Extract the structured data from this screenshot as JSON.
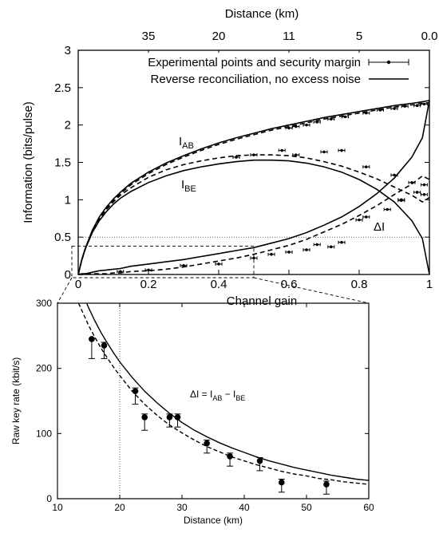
{
  "chart_data": [
    {
      "type": "line",
      "x_axis": {
        "label": "Channel gain",
        "range": [
          0,
          1
        ],
        "ticks": [
          0,
          0.2,
          0.4,
          0.6,
          0.8,
          1
        ],
        "tick_labels": [
          "0",
          "0.2",
          "0.4",
          "0.6",
          "0.8",
          "1"
        ]
      },
      "x2_axis": {
        "label": "Distance (km)",
        "ticks_at_gain": [
          0.2,
          0.4,
          0.6,
          0.8,
          1.0
        ],
        "tick_labels": [
          "35",
          "20",
          "11",
          "5",
          "0.0"
        ]
      },
      "y_axis": {
        "label": "Information (bits/pulse)",
        "range": [
          0,
          3
        ],
        "ticks": [
          0,
          0.5,
          1,
          1.5,
          2,
          2.5,
          3
        ],
        "tick_labels": [
          "0",
          "0.5",
          "1",
          "1.5",
          "2",
          "2.5",
          "3"
        ]
      },
      "legend": {
        "position": "top",
        "entries": [
          {
            "label": "Experimental points and security margin",
            "style": "errorbar-points"
          },
          {
            "label": "Reverse reconciliation, no excess noise",
            "style": "solid-line"
          }
        ]
      },
      "annotations": [
        {
          "text": "I",
          "sub": "AB",
          "near": "I_AB curve"
        },
        {
          "text": "I",
          "sub": "BE",
          "near": "I_BE curve"
        },
        {
          "text": "ΔI",
          "near": "ΔI curve"
        }
      ],
      "theory_VA": 40,
      "series": [
        {
          "name": "I_AB theory",
          "style": "solid",
          "x": [
            0.0,
            0.01,
            0.02,
            0.04,
            0.06,
            0.08,
            0.1,
            0.12,
            0.15,
            0.2,
            0.25,
            0.3,
            0.35,
            0.4,
            0.45,
            0.5,
            0.55,
            0.6,
            0.65,
            0.7,
            0.75,
            0.8,
            0.85,
            0.9,
            0.95,
            0.98,
            1.0
          ],
          "y": [
            0.0,
            0.2,
            0.35,
            0.59,
            0.77,
            0.9,
            1.01,
            1.1,
            1.22,
            1.37,
            1.49,
            1.59,
            1.68,
            1.76,
            1.83,
            1.89,
            1.95,
            2.0,
            2.05,
            2.1,
            2.14,
            2.18,
            2.22,
            2.26,
            2.29,
            2.31,
            2.33
          ]
        },
        {
          "name": "I_BE theory",
          "style": "solid",
          "x": [
            0.0,
            0.01,
            0.02,
            0.04,
            0.06,
            0.08,
            0.1,
            0.12,
            0.15,
            0.2,
            0.25,
            0.3,
            0.35,
            0.4,
            0.45,
            0.5,
            0.55,
            0.6,
            0.65,
            0.7,
            0.75,
            0.8,
            0.85,
            0.9,
            0.95,
            0.98,
            1.0
          ],
          "y": [
            0.0,
            0.19,
            0.34,
            0.56,
            0.72,
            0.84,
            0.94,
            1.02,
            1.11,
            1.23,
            1.32,
            1.39,
            1.44,
            1.48,
            1.51,
            1.53,
            1.53,
            1.52,
            1.49,
            1.44,
            1.37,
            1.27,
            1.14,
            0.97,
            0.72,
            0.48,
            0.0
          ]
        },
        {
          "name": "ΔI theory",
          "style": "solid",
          "x": [
            0.0,
            0.01,
            0.02,
            0.04,
            0.06,
            0.08,
            0.1,
            0.12,
            0.15,
            0.2,
            0.25,
            0.3,
            0.35,
            0.4,
            0.45,
            0.5,
            0.55,
            0.6,
            0.65,
            0.7,
            0.75,
            0.8,
            0.85,
            0.9,
            0.95,
            0.98,
            1.0
          ],
          "y": [
            0.0,
            0.01,
            0.01,
            0.03,
            0.05,
            0.06,
            0.07,
            0.08,
            0.11,
            0.14,
            0.17,
            0.2,
            0.24,
            0.28,
            0.32,
            0.36,
            0.42,
            0.48,
            0.56,
            0.66,
            0.77,
            0.91,
            1.08,
            1.29,
            1.57,
            1.83,
            2.33
          ]
        },
        {
          "name": "I_AB experiment fit",
          "style": "dashed",
          "x": [
            0.0,
            0.01,
            0.02,
            0.04,
            0.06,
            0.08,
            0.1,
            0.12,
            0.15,
            0.2,
            0.25,
            0.3,
            0.35,
            0.4,
            0.45,
            0.5,
            0.55,
            0.6,
            0.65,
            0.7,
            0.75,
            0.8,
            0.85,
            0.9,
            0.95,
            0.98,
            1.0
          ],
          "y": [
            0.0,
            0.19,
            0.34,
            0.58,
            0.75,
            0.88,
            0.99,
            1.08,
            1.2,
            1.35,
            1.47,
            1.57,
            1.66,
            1.74,
            1.81,
            1.87,
            1.93,
            1.98,
            2.03,
            2.08,
            2.12,
            2.16,
            2.2,
            2.24,
            2.27,
            2.29,
            2.3
          ]
        },
        {
          "name": "I_BE experiment fit",
          "style": "dashed",
          "x": [
            0.0,
            0.01,
            0.02,
            0.04,
            0.06,
            0.08,
            0.1,
            0.12,
            0.15,
            0.2,
            0.25,
            0.3,
            0.35,
            0.4,
            0.45,
            0.5,
            0.55,
            0.6,
            0.65,
            0.7,
            0.75,
            0.8,
            0.85,
            0.9,
            0.95,
            0.98,
            1.0
          ],
          "y": [
            0.0,
            0.19,
            0.34,
            0.57,
            0.74,
            0.87,
            0.97,
            1.06,
            1.16,
            1.3,
            1.4,
            1.47,
            1.52,
            1.56,
            1.59,
            1.6,
            1.6,
            1.59,
            1.56,
            1.51,
            1.45,
            1.37,
            1.28,
            1.17,
            1.06,
            0.97,
            1.03
          ]
        },
        {
          "name": "ΔI experiment fit",
          "style": "dashed",
          "x": [
            0.0,
            0.01,
            0.02,
            0.04,
            0.06,
            0.08,
            0.1,
            0.12,
            0.15,
            0.2,
            0.25,
            0.3,
            0.35,
            0.4,
            0.45,
            0.5,
            0.55,
            0.6,
            0.65,
            0.7,
            0.75,
            0.8,
            0.85,
            0.9,
            0.95,
            0.98,
            1.0
          ],
          "y": [
            0.0,
            0.0,
            0.0,
            0.01,
            0.01,
            0.01,
            0.02,
            0.02,
            0.04,
            0.05,
            0.07,
            0.1,
            0.14,
            0.18,
            0.22,
            0.27,
            0.33,
            0.39,
            0.47,
            0.57,
            0.67,
            0.79,
            0.92,
            1.07,
            1.21,
            1.32,
            1.27
          ]
        },
        {
          "name": "I_AB points",
          "style": "errorbar-points",
          "x": [
            0.6,
            0.62,
            0.65,
            0.68,
            0.72,
            0.76,
            0.82,
            0.86,
            0.9,
            0.93,
            0.965,
            0.985
          ],
          "y": [
            1.96,
            1.98,
            2.0,
            2.04,
            2.08,
            2.11,
            2.16,
            2.2,
            2.22,
            2.25,
            2.26,
            2.28
          ]
        },
        {
          "name": "I_BE points",
          "style": "errorbar-points",
          "x": [
            0.45,
            0.5,
            0.58,
            0.62,
            0.7,
            0.75,
            0.82,
            0.9,
            0.92,
            0.965,
            0.985
          ],
          "y": [
            1.57,
            1.6,
            1.66,
            1.6,
            1.64,
            1.66,
            1.44,
            1.33,
            0.99,
            1.1,
            1.07
          ]
        },
        {
          "name": "ΔI points",
          "style": "errorbar-points",
          "x": [
            0.12,
            0.2,
            0.3,
            0.4,
            0.5,
            0.55,
            0.6,
            0.65,
            0.68,
            0.72,
            0.75,
            0.8,
            0.82,
            0.88,
            0.92,
            0.95,
            0.985
          ],
          "y": [
            0.04,
            0.06,
            0.12,
            0.14,
            0.22,
            0.27,
            0.3,
            0.33,
            0.4,
            0.37,
            0.43,
            0.73,
            0.77,
            0.87,
            1.0,
            1.23,
            1.2
          ]
        }
      ],
      "reference_lines": [
        {
          "type": "horizontal",
          "y": 0.5,
          "style": "dotted"
        }
      ],
      "zoom_box": {
        "x": [
          0,
          0.5
        ],
        "y": [
          0,
          0.38
        ],
        "style": "dashed"
      }
    },
    {
      "type": "line",
      "x_axis": {
        "label": "Distance (km)",
        "range": [
          10,
          60
        ],
        "ticks": [
          10,
          20,
          30,
          40,
          50,
          60
        ],
        "tick_labels": [
          "10",
          "20",
          "30",
          "40",
          "50",
          "60"
        ]
      },
      "y_axis": {
        "label": "Raw key rate (kbit/s)",
        "range": [
          0,
          300
        ],
        "ticks": [
          0,
          100,
          200,
          300
        ],
        "tick_labels": [
          "0",
          "100",
          "200",
          "300"
        ]
      },
      "annotations": [
        {
          "text": "ΔI = I",
          "sub1": "AB",
          "mid": " − I",
          "sub2": "BE"
        }
      ],
      "reference_lines": [
        {
          "type": "vertical",
          "x": 20,
          "style": "dotted"
        }
      ],
      "series": [
        {
          "name": "theory",
          "style": "solid",
          "x": [
            14.7,
            15,
            16,
            17,
            18,
            19,
            20,
            22,
            24,
            26,
            28,
            30,
            32,
            34,
            36,
            38,
            40,
            42,
            44,
            46,
            48,
            50,
            52,
            54,
            56,
            58,
            60
          ],
          "y": [
            300,
            293,
            273,
            255,
            239,
            224,
            210,
            186,
            165,
            147,
            131,
            117,
            105,
            95,
            86,
            78,
            71,
            64,
            58,
            53,
            48,
            44,
            40,
            36,
            33,
            30,
            28
          ]
        },
        {
          "name": "experiment fit",
          "style": "dashed",
          "x": [
            13.4,
            14,
            15,
            16,
            17,
            18,
            19,
            20,
            22,
            24,
            26,
            28,
            30,
            32,
            34,
            36,
            38,
            40,
            42,
            44,
            46,
            48,
            50,
            52,
            54,
            56,
            58,
            60
          ],
          "y": [
            300,
            287,
            266,
            248,
            231,
            216,
            202,
            189,
            165,
            145,
            128,
            113,
            101,
            90,
            80,
            72,
            64,
            58,
            52,
            47,
            42,
            38,
            35,
            31,
            29,
            26,
            24,
            22
          ]
        },
        {
          "name": "points",
          "style": "errorbar-points",
          "x": [
            15.5,
            17.5,
            22.5,
            24,
            28,
            29.3,
            34,
            37.7,
            42.5,
            46,
            53.2
          ],
          "y": [
            245,
            235,
            165,
            125,
            125,
            125,
            85,
            65,
            58,
            25,
            22
          ],
          "err_low": [
            30,
            20,
            20,
            20,
            15,
            15,
            15,
            15,
            15,
            15,
            15
          ],
          "err_high": [
            0,
            5,
            5,
            5,
            5,
            5,
            5,
            5,
            5,
            5,
            5
          ]
        }
      ]
    }
  ]
}
